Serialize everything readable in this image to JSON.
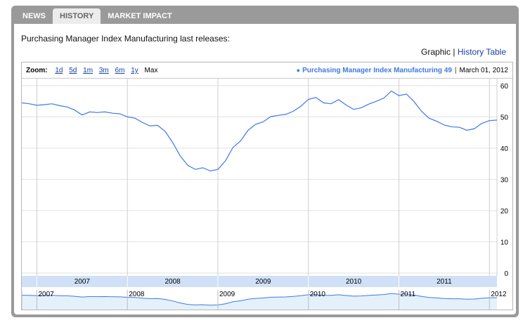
{
  "tabs": [
    {
      "label": "NEWS",
      "active": false
    },
    {
      "label": "HISTORY",
      "active": true
    },
    {
      "label": "MARKET IMPACT",
      "active": false
    }
  ],
  "heading": "Purchasing Manager Index Manufacturing last releases:",
  "views": {
    "graphic": "Graphic",
    "separator": "|",
    "history_table": "History Table"
  },
  "zoom": {
    "label": "Zoom:",
    "options": [
      "1d",
      "5d",
      "1m",
      "3m",
      "6m",
      "1y"
    ],
    "selected": "Max"
  },
  "legend": {
    "series_label": "Purchasing Manager Index Manufacturing 49",
    "date": "March 01, 2012"
  },
  "colors": {
    "line": "#3e79e6",
    "year_band": "#cfe0f7",
    "navigator_fill": "#e4f1fb"
  },
  "navigator": {
    "scrollbar_grip": "|||"
  },
  "chart_data": {
    "type": "line",
    "title": "",
    "series": [
      {
        "name": "Purchasing Manager Index Manufacturing",
        "x": [
          "2006-11",
          "2006-12",
          "2007-01",
          "2007-02",
          "2007-03",
          "2007-04",
          "2007-05",
          "2007-06",
          "2007-07",
          "2007-08",
          "2007-09",
          "2007-10",
          "2007-11",
          "2007-12",
          "2008-01",
          "2008-02",
          "2008-03",
          "2008-04",
          "2008-05",
          "2008-06",
          "2008-07",
          "2008-08",
          "2008-09",
          "2008-10",
          "2008-11",
          "2008-12",
          "2009-01",
          "2009-02",
          "2009-03",
          "2009-04",
          "2009-05",
          "2009-06",
          "2009-07",
          "2009-08",
          "2009-09",
          "2009-10",
          "2009-11",
          "2009-12",
          "2010-01",
          "2010-02",
          "2010-03",
          "2010-04",
          "2010-05",
          "2010-06",
          "2010-07",
          "2010-08",
          "2010-09",
          "2010-10",
          "2010-11",
          "2010-12",
          "2011-01",
          "2011-02",
          "2011-03",
          "2011-04",
          "2011-05",
          "2011-06",
          "2011-07",
          "2011-08",
          "2011-09",
          "2011-10",
          "2011-11",
          "2011-12",
          "2012-01",
          "2012-02"
        ],
        "values": [
          54.5,
          54.2,
          53.7,
          53.9,
          54.2,
          53.6,
          53.2,
          52.2,
          50.6,
          51.6,
          51.4,
          51.6,
          51.2,
          51.0,
          50.0,
          49.6,
          48.2,
          47.1,
          47.3,
          45.4,
          41.8,
          37.5,
          34.5,
          33.2,
          33.7,
          32.7,
          33.2,
          35.9,
          40.2,
          42.3,
          45.7,
          47.6,
          48.4,
          50.1,
          50.5,
          50.8,
          51.8,
          53.4,
          55.6,
          56.2,
          54.5,
          54.2,
          55.5,
          53.8,
          52.4,
          52.9,
          54.1,
          55.0,
          56.0,
          58.3,
          56.8,
          57.3,
          54.9,
          51.8,
          49.6,
          48.6,
          47.4,
          46.8,
          46.7,
          45.7,
          46.2,
          47.9,
          48.8,
          49.0
        ]
      }
    ],
    "x_ticks": [
      "2007",
      "2008",
      "2009",
      "2010",
      "2011"
    ],
    "navigator_labels": [
      "2007",
      "2008",
      "2009",
      "2010",
      "2011",
      "2012"
    ],
    "ylim": [
      0,
      60
    ],
    "y_ticks": [
      0,
      10,
      20,
      30,
      40,
      50,
      60
    ],
    "xlabel": "",
    "ylabel": "",
    "grid": true
  }
}
